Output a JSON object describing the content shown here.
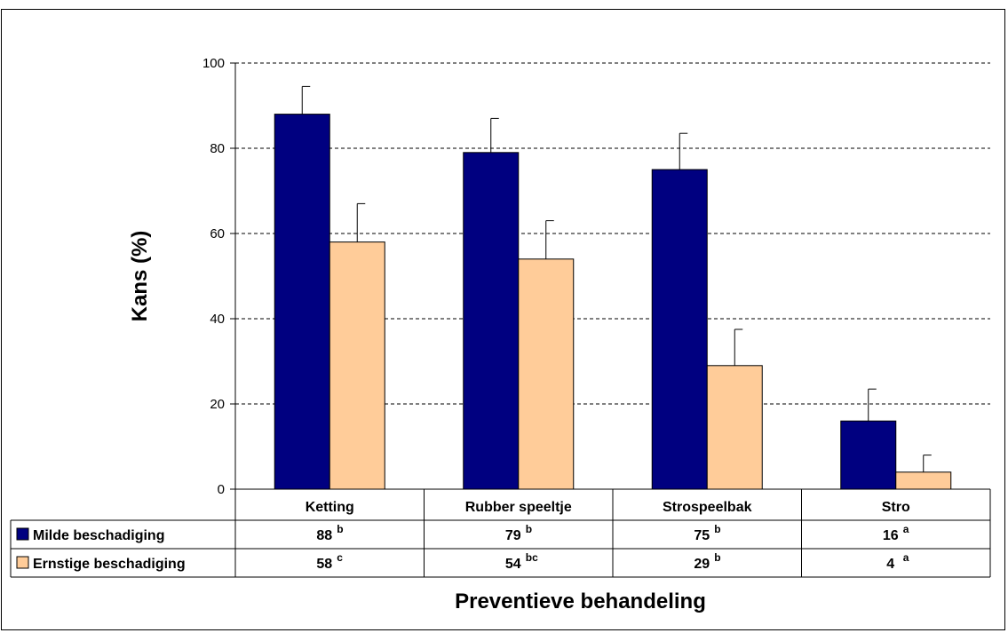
{
  "chart_data": {
    "type": "bar",
    "categories": [
      "Ketting",
      "Rubber speeltje",
      "Strospeelbak",
      "Stro"
    ],
    "series": [
      {
        "name": "Milde beschadiging",
        "values": [
          88,
          79,
          75,
          16
        ],
        "errors": [
          6.5,
          8,
          8.5,
          7.5
        ],
        "labels": [
          "88",
          "79",
          "75",
          "16"
        ],
        "superscripts": [
          "b",
          "b",
          "b",
          "a"
        ],
        "color": "#000080"
      },
      {
        "name": "Ernstige beschadiging",
        "values": [
          58,
          54,
          29,
          4
        ],
        "errors": [
          9,
          9,
          8.5,
          4
        ],
        "labels": [
          "58",
          "54",
          "29",
          "4"
        ],
        "superscripts": [
          "c",
          "bc",
          "b",
          "a"
        ],
        "color": "#FFCC99"
      }
    ],
    "ylabel": "Kans (%)",
    "xlabel": "Preventieve behandeling",
    "ylim": [
      0,
      100
    ],
    "yticks": [
      "0",
      "20",
      "40",
      "60",
      "80",
      "100"
    ],
    "grid": true,
    "legend": "data-table"
  }
}
